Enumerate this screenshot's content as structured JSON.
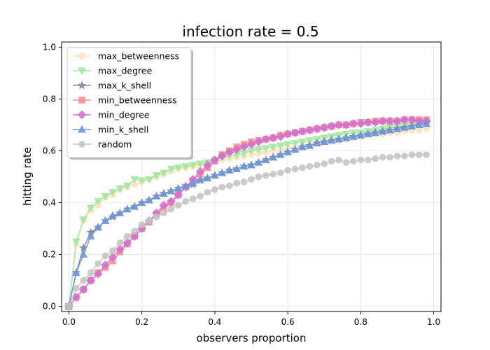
{
  "chart_data": {
    "type": "line",
    "title": "infection rate = 0.5",
    "xlabel": "observers proportion",
    "ylabel": "hitting rate",
    "xlim": [
      -0.02,
      1.02
    ],
    "ylim": [
      -0.02,
      1.02
    ],
    "xticks": [
      "0.0",
      "0.2",
      "0.4",
      "0.6",
      "0.8",
      "1.0"
    ],
    "yticks": [
      "0.0",
      "0.2",
      "0.4",
      "0.6",
      "0.8",
      "1.0"
    ],
    "grid": true,
    "legend_position": "upper-left",
    "x": [
      0.0,
      0.02,
      0.04,
      0.06,
      0.08,
      0.1,
      0.12,
      0.14,
      0.16,
      0.18,
      0.2,
      0.22,
      0.24,
      0.26,
      0.28,
      0.3,
      0.32,
      0.34,
      0.36,
      0.38,
      0.4,
      0.42,
      0.44,
      0.46,
      0.48,
      0.5,
      0.52,
      0.54,
      0.56,
      0.58,
      0.6,
      0.62,
      0.64,
      0.66,
      0.68,
      0.7,
      0.72,
      0.74,
      0.76,
      0.78,
      0.8,
      0.82,
      0.84,
      0.86,
      0.88,
      0.9,
      0.92,
      0.94,
      0.96,
      0.98
    ],
    "series": [
      {
        "name": "max_betweenness",
        "color": "#fde3c0",
        "marker": "circle",
        "values": [
          0.0,
          0.24,
          0.33,
          0.37,
          0.39,
          0.42,
          0.43,
          0.45,
          0.46,
          0.47,
          0.48,
          0.49,
          0.5,
          0.51,
          0.52,
          0.53,
          0.535,
          0.54,
          0.545,
          0.55,
          0.56,
          0.565,
          0.57,
          0.575,
          0.58,
          0.585,
          0.59,
          0.595,
          0.6,
          0.605,
          0.61,
          0.615,
          0.62,
          0.625,
          0.63,
          0.635,
          0.64,
          0.64,
          0.645,
          0.65,
          0.655,
          0.66,
          0.665,
          0.665,
          0.67,
          0.67,
          0.675,
          0.68,
          0.68,
          0.685
        ]
      },
      {
        "name": "max_degree",
        "color": "#a4e5a0",
        "marker": "triangle-down",
        "values": [
          0.0,
          0.25,
          0.335,
          0.38,
          0.405,
          0.425,
          0.44,
          0.455,
          0.465,
          0.49,
          0.485,
          0.49,
          0.505,
          0.515,
          0.53,
          0.535,
          0.54,
          0.545,
          0.55,
          0.555,
          0.565,
          0.575,
          0.58,
          0.585,
          0.59,
          0.6,
          0.605,
          0.61,
          0.615,
          0.62,
          0.625,
          0.63,
          0.635,
          0.64,
          0.645,
          0.65,
          0.655,
          0.66,
          0.665,
          0.67,
          0.67,
          0.675,
          0.68,
          0.685,
          0.69,
          0.69,
          0.695,
          0.7,
          0.705,
          0.71
        ]
      },
      {
        "name": "max_k_shell",
        "color": "#7b8ba5",
        "marker": "star",
        "values": [
          0.0,
          0.13,
          0.225,
          0.285,
          0.305,
          0.33,
          0.345,
          0.36,
          0.375,
          0.385,
          0.4,
          0.41,
          0.425,
          0.435,
          0.445,
          0.455,
          0.465,
          0.47,
          0.485,
          0.495,
          0.505,
          0.515,
          0.525,
          0.53,
          0.54,
          0.545,
          0.555,
          0.565,
          0.575,
          0.585,
          0.595,
          0.605,
          0.615,
          0.62,
          0.63,
          0.635,
          0.64,
          0.645,
          0.65,
          0.655,
          0.66,
          0.665,
          0.67,
          0.675,
          0.68,
          0.685,
          0.69,
          0.695,
          0.7,
          0.705
        ]
      },
      {
        "name": "min_betweenness",
        "color": "#f4908e",
        "marker": "square",
        "values": [
          0.0,
          0.035,
          0.065,
          0.1,
          0.13,
          0.15,
          0.175,
          0.21,
          0.24,
          0.27,
          0.3,
          0.325,
          0.355,
          0.38,
          0.4,
          0.43,
          0.46,
          0.485,
          0.51,
          0.535,
          0.56,
          0.585,
          0.6,
          0.615,
          0.625,
          0.635,
          0.64,
          0.645,
          0.65,
          0.66,
          0.665,
          0.67,
          0.675,
          0.68,
          0.685,
          0.69,
          0.695,
          0.7,
          0.7,
          0.705,
          0.71,
          0.71,
          0.715,
          0.715,
          0.715,
          0.715,
          0.72,
          0.72,
          0.72,
          0.72
        ]
      },
      {
        "name": "min_degree",
        "color": "#d26fd0",
        "marker": "diamond",
        "values": [
          0.0,
          0.035,
          0.065,
          0.1,
          0.125,
          0.16,
          0.19,
          0.22,
          0.245,
          0.27,
          0.3,
          0.33,
          0.36,
          0.39,
          0.405,
          0.43,
          0.46,
          0.49,
          0.52,
          0.545,
          0.565,
          0.58,
          0.595,
          0.605,
          0.615,
          0.625,
          0.635,
          0.645,
          0.65,
          0.655,
          0.665,
          0.67,
          0.675,
          0.68,
          0.685,
          0.69,
          0.695,
          0.7,
          0.7,
          0.705,
          0.705,
          0.71,
          0.71,
          0.715,
          0.715,
          0.715,
          0.72,
          0.72,
          0.715,
          0.715
        ]
      },
      {
        "name": "min_k_shell",
        "color": "#6f97d8",
        "marker": "triangle-up",
        "values": [
          0.0,
          0.13,
          0.2,
          0.27,
          0.305,
          0.33,
          0.35,
          0.36,
          0.375,
          0.385,
          0.4,
          0.41,
          0.425,
          0.435,
          0.445,
          0.455,
          0.465,
          0.475,
          0.49,
          0.495,
          0.505,
          0.515,
          0.525,
          0.53,
          0.54,
          0.545,
          0.555,
          0.565,
          0.575,
          0.585,
          0.595,
          0.605,
          0.615,
          0.62,
          0.63,
          0.635,
          0.64,
          0.645,
          0.65,
          0.655,
          0.66,
          0.665,
          0.67,
          0.675,
          0.68,
          0.685,
          0.69,
          0.695,
          0.7,
          0.705
        ]
      },
      {
        "name": "random",
        "color": "#c4c4c4",
        "marker": "circle",
        "values": [
          0.0,
          0.07,
          0.1,
          0.13,
          0.165,
          0.195,
          0.215,
          0.245,
          0.27,
          0.29,
          0.315,
          0.33,
          0.345,
          0.36,
          0.375,
          0.39,
          0.405,
          0.415,
          0.425,
          0.44,
          0.45,
          0.46,
          0.465,
          0.475,
          0.48,
          0.49,
          0.5,
          0.505,
          0.51,
          0.515,
          0.525,
          0.53,
          0.535,
          0.54,
          0.545,
          0.55,
          0.56,
          0.565,
          0.555,
          0.56,
          0.565,
          0.565,
          0.57,
          0.575,
          0.575,
          0.58,
          0.58,
          0.585,
          0.585,
          0.585
        ]
      }
    ]
  }
}
